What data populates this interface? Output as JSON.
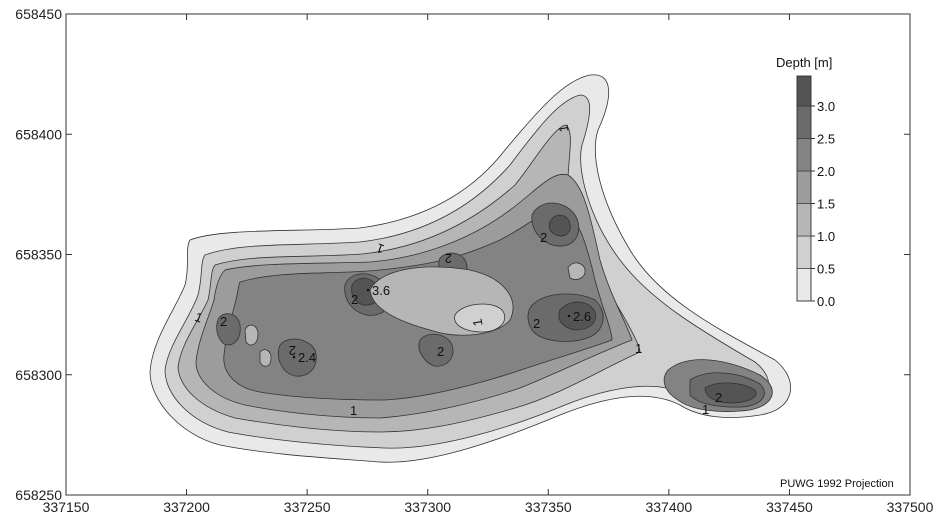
{
  "map": {
    "x_axis": {
      "ticks": [
        "337150",
        "337200",
        "337250",
        "337300",
        "337350",
        "337400",
        "337450",
        "337500"
      ],
      "range": [
        337150,
        337500
      ]
    },
    "y_axis": {
      "ticks": [
        "658250",
        "658300",
        "658350",
        "658400",
        "658450"
      ],
      "range": [
        658250,
        658450
      ]
    },
    "legend": {
      "title": "Depth [m]",
      "labels": [
        "0.0",
        "0.5",
        "1.0",
        "1.5",
        "2.0",
        "2.5",
        "3.0"
      ],
      "colors": [
        "#e9e9e9",
        "#d0d0d0",
        "#b6b6b6",
        "#9c9c9c",
        "#838383",
        "#6b6b6b",
        "#545454"
      ]
    },
    "contour_labels": [
      {
        "text": "1"
      },
      {
        "text": "1"
      },
      {
        "text": "1"
      },
      {
        "text": "1"
      },
      {
        "text": "1"
      },
      {
        "text": "1"
      },
      {
        "text": "1"
      },
      {
        "text": "2"
      },
      {
        "text": "2"
      },
      {
        "text": "2"
      },
      {
        "text": "2"
      },
      {
        "text": "2"
      },
      {
        "text": "2"
      },
      {
        "text": "2"
      },
      {
        "text": "2"
      }
    ],
    "spot_depths": [
      "3.6",
      "2.6",
      "2.4"
    ],
    "projection_note": "PUWG 1992 Projection"
  }
}
